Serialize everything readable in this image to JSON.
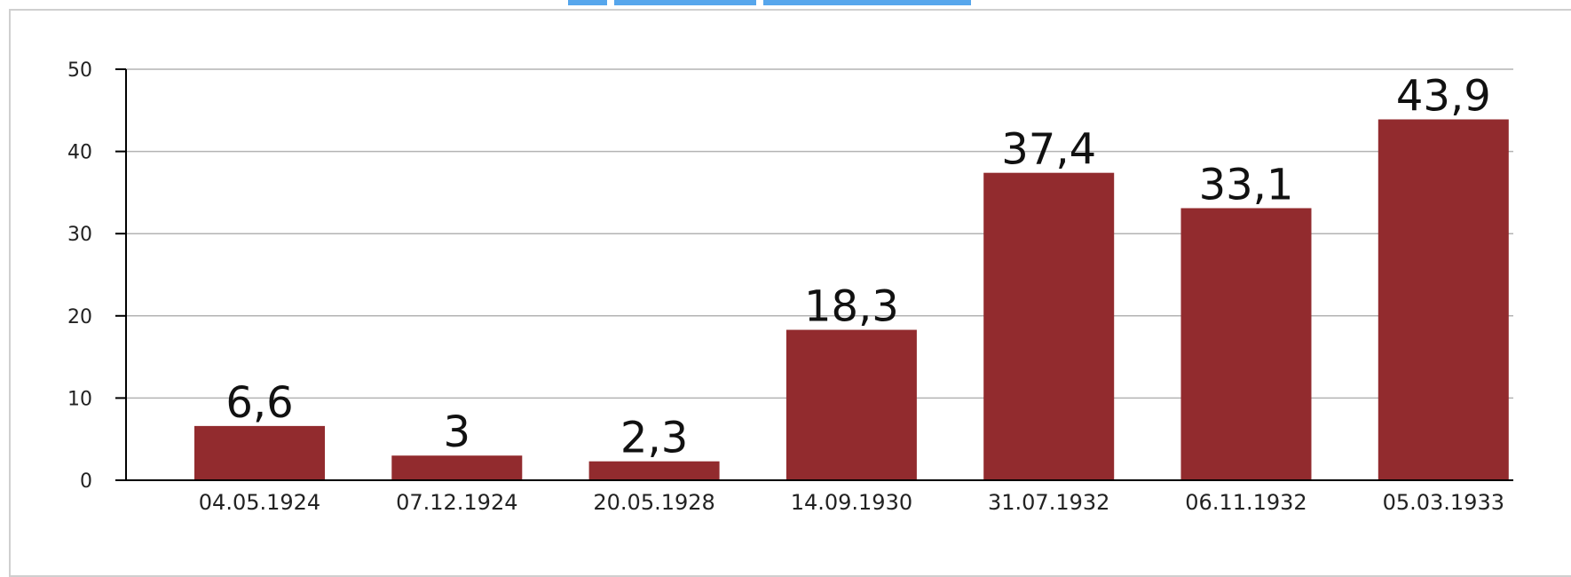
{
  "chart_data": {
    "type": "bar",
    "title": "",
    "xlabel": "",
    "ylabel": "",
    "categories": [
      "04.05.1924",
      "07.12.1924",
      "20.05.1928",
      "14.09.1930",
      "31.07.1932",
      "06.11.1932",
      "05.03.1933"
    ],
    "values": [
      6.6,
      3,
      2.3,
      18.3,
      37.4,
      33.1,
      43.9
    ],
    "value_labels": [
      "6,6",
      "3",
      "2,3",
      "18,3",
      "37,4",
      "33,1",
      "43,9"
    ],
    "ylim": [
      0,
      50
    ],
    "yticks": [
      0,
      10,
      20,
      30,
      40,
      50
    ],
    "grid": true,
    "bar_color": "#922b2e",
    "grid_color": "#b3b3b3",
    "axis_color": "#000000"
  }
}
